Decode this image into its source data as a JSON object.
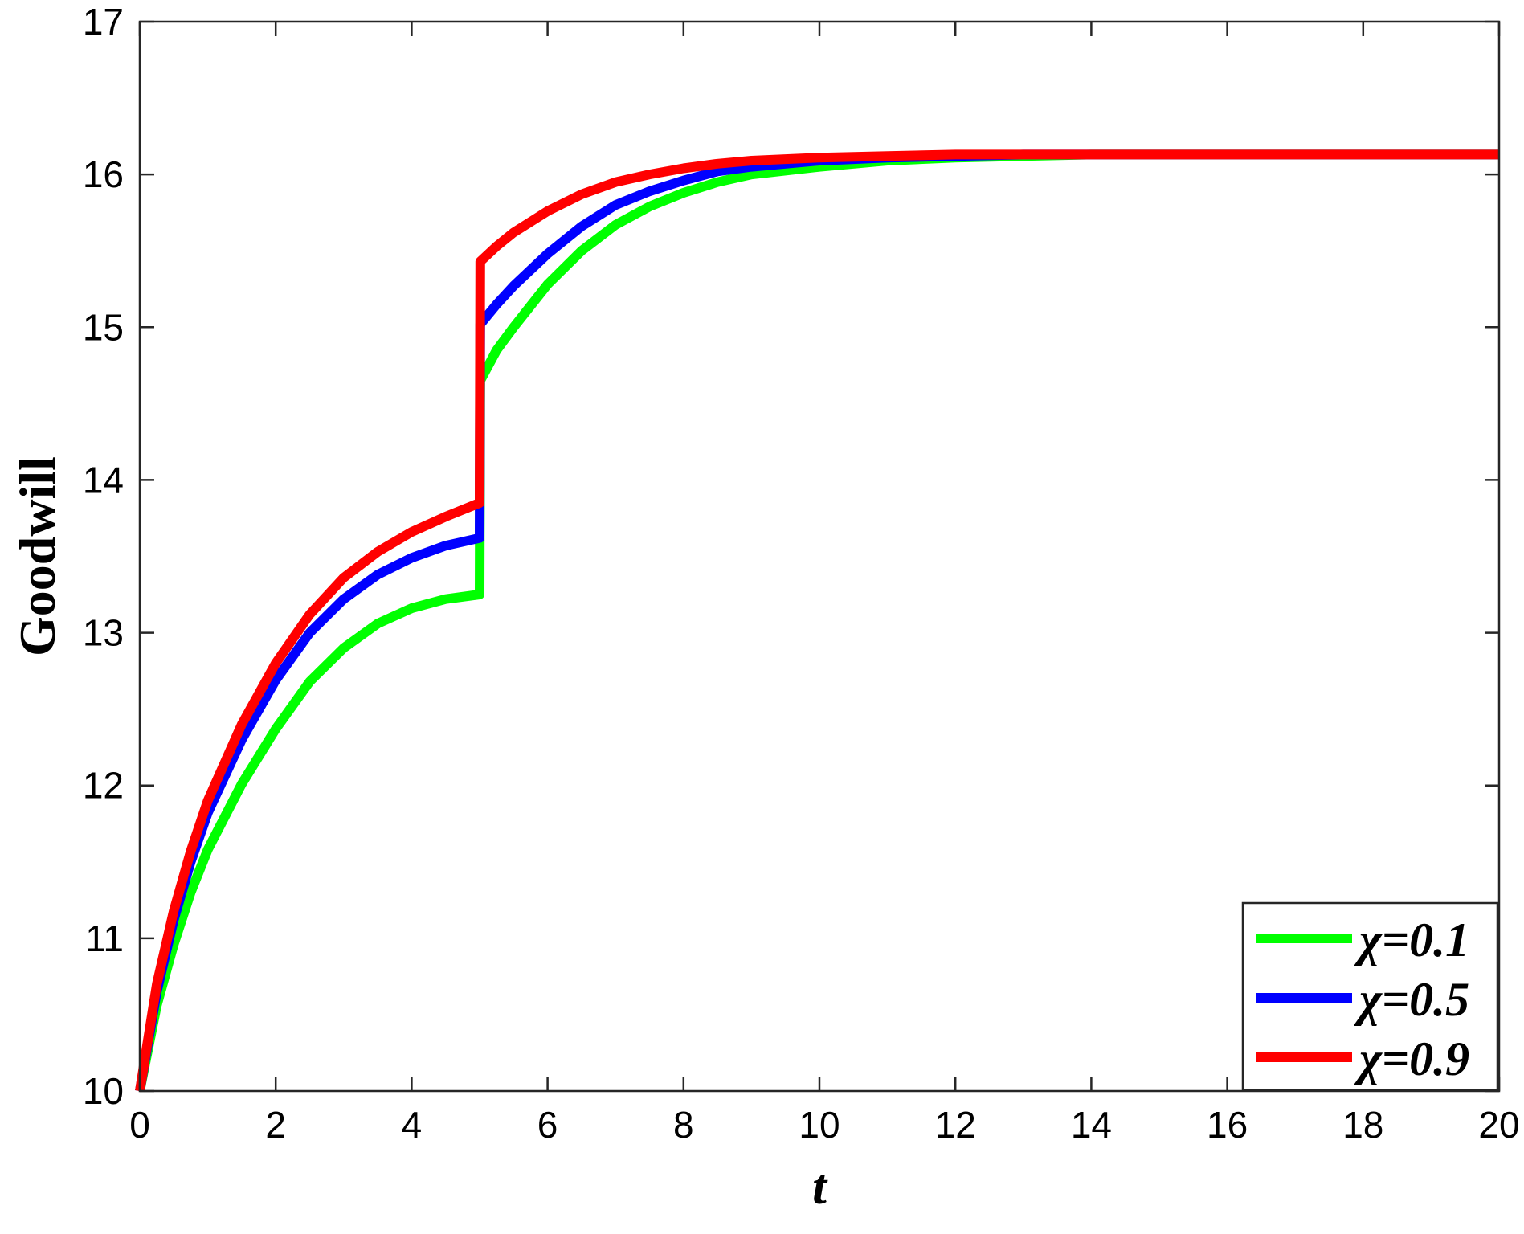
{
  "chart_data": {
    "type": "line",
    "title": "",
    "xlabel": "t",
    "ylabel": "Goodwill",
    "xlim": [
      0,
      20
    ],
    "ylim": [
      10,
      17
    ],
    "xticks": [
      0,
      2,
      4,
      6,
      8,
      10,
      12,
      14,
      16,
      18,
      20
    ],
    "yticks": [
      10,
      11,
      12,
      13,
      14,
      15,
      16,
      17
    ],
    "grid": false,
    "legend_position": "bottom-right",
    "series": [
      {
        "name": "χ=0.1",
        "color": "#00ff00",
        "x": [
          0,
          0.25,
          0.5,
          0.75,
          1,
          1.5,
          2,
          2.5,
          3,
          3.5,
          4,
          4.5,
          5,
          5.01,
          5.25,
          5.5,
          6,
          6.5,
          7,
          7.5,
          8,
          8.5,
          9,
          10,
          11,
          12,
          13,
          14,
          15,
          16,
          17,
          18,
          19,
          20
        ],
        "y": [
          10.0,
          10.56,
          10.96,
          11.3,
          11.58,
          12.01,
          12.37,
          12.68,
          12.9,
          13.06,
          13.16,
          13.22,
          13.25,
          14.65,
          14.85,
          15.0,
          15.28,
          15.5,
          15.67,
          15.79,
          15.88,
          15.95,
          16.0,
          16.05,
          16.09,
          16.11,
          16.12,
          16.13,
          16.13,
          16.13,
          16.13,
          16.13,
          16.13,
          16.13
        ]
      },
      {
        "name": "χ=0.5",
        "color": "#0000ff",
        "x": [
          0,
          0.25,
          0.5,
          0.75,
          1,
          1.5,
          2,
          2.5,
          3,
          3.5,
          4,
          4.5,
          5,
          5.01,
          5.25,
          5.5,
          6,
          6.5,
          7,
          7.5,
          8,
          8.5,
          9,
          10,
          11,
          12,
          13,
          14,
          15,
          16,
          17,
          18,
          19,
          20
        ],
        "y": [
          10.0,
          10.65,
          11.12,
          11.5,
          11.82,
          12.3,
          12.69,
          13.0,
          13.22,
          13.38,
          13.49,
          13.57,
          13.62,
          15.02,
          15.15,
          15.27,
          15.48,
          15.66,
          15.8,
          15.89,
          15.96,
          16.02,
          16.05,
          16.09,
          16.11,
          16.12,
          16.13,
          16.13,
          16.13,
          16.13,
          16.13,
          16.13,
          16.13,
          16.13
        ]
      },
      {
        "name": "χ=0.9",
        "color": "#ff0000",
        "x": [
          0,
          0.25,
          0.5,
          0.75,
          1,
          1.5,
          2,
          2.5,
          3,
          3.5,
          4,
          4.5,
          5,
          5.01,
          5.25,
          5.5,
          6,
          6.5,
          7,
          7.5,
          8,
          8.5,
          9,
          10,
          11,
          12,
          13,
          14,
          15,
          16,
          17,
          18,
          19,
          20
        ],
        "y": [
          10.0,
          10.7,
          11.18,
          11.57,
          11.9,
          12.4,
          12.8,
          13.12,
          13.36,
          13.53,
          13.66,
          13.76,
          13.85,
          15.43,
          15.53,
          15.62,
          15.76,
          15.87,
          15.95,
          16.0,
          16.04,
          16.07,
          16.09,
          16.11,
          16.12,
          16.13,
          16.13,
          16.13,
          16.13,
          16.13,
          16.13,
          16.13,
          16.13,
          16.13
        ]
      }
    ]
  }
}
